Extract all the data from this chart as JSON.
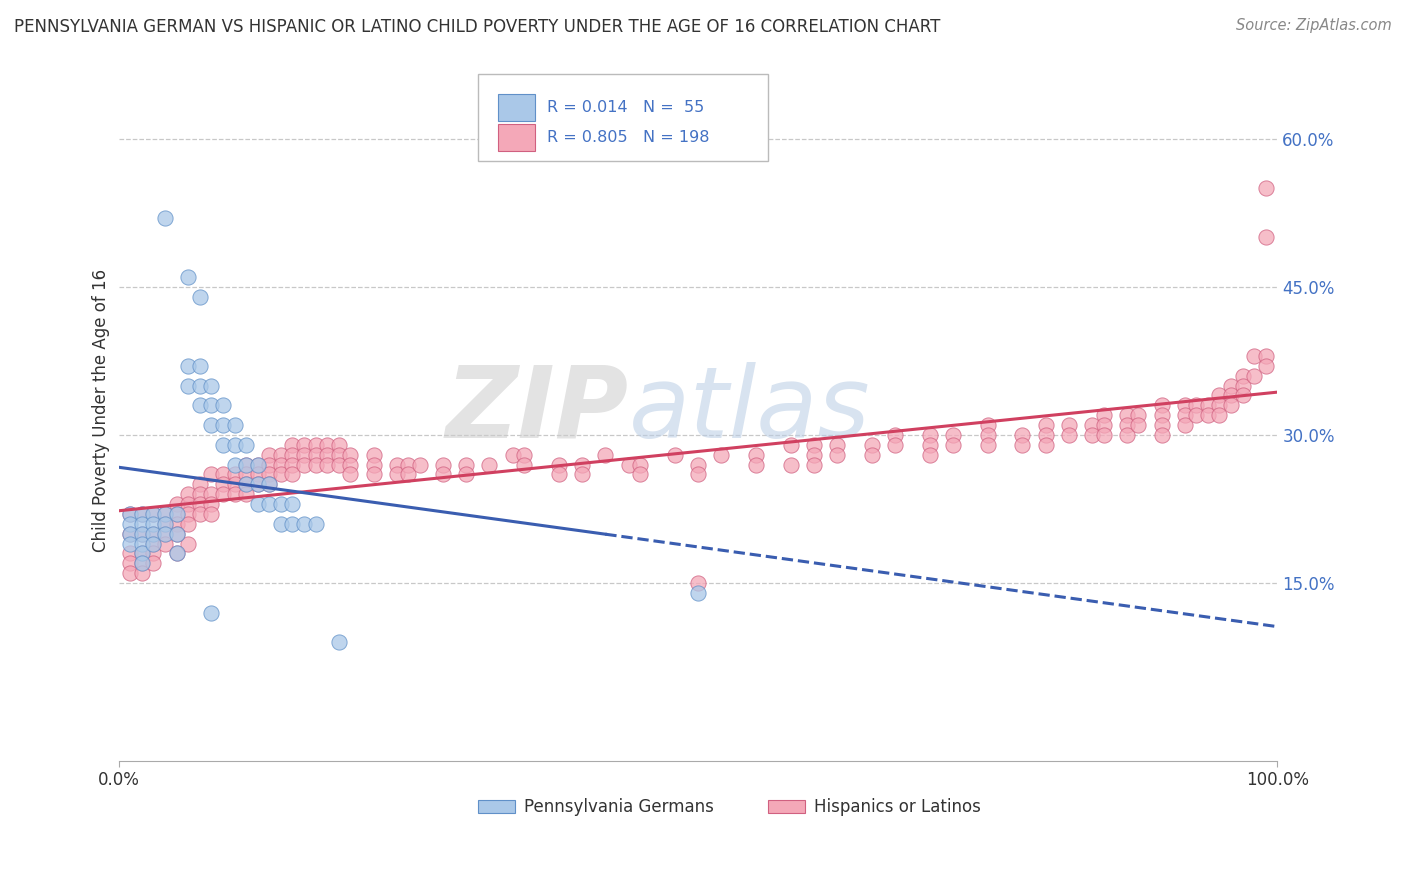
{
  "title": "PENNSYLVANIA GERMAN VS HISPANIC OR LATINO CHILD POVERTY UNDER THE AGE OF 16 CORRELATION CHART",
  "source": "Source: ZipAtlas.com",
  "ylabel": "Child Poverty Under the Age of 16",
  "right_yticks": [
    "15.0%",
    "30.0%",
    "45.0%",
    "60.0%"
  ],
  "right_ytick_vals": [
    0.15,
    0.3,
    0.45,
    0.6
  ],
  "r_blue": 0.014,
  "n_blue": 55,
  "r_pink": 0.805,
  "n_pink": 198,
  "blue_color": "#aac8e8",
  "blue_edge_color": "#6090c8",
  "pink_color": "#f4a8b8",
  "pink_edge_color": "#d06080",
  "blue_line_color": "#3a5db0",
  "pink_line_color": "#d04060",
  "text_color": "#4472c4",
  "dark_text": "#333333",
  "watermark_color": "#d0d8e8",
  "xlim": [
    0.0,
    1.0
  ],
  "ylim": [
    -0.03,
    0.68
  ],
  "background_color": "#ffffff",
  "grid_color": "#c8c8c8",
  "blue_scatter": [
    [
      0.01,
      0.22
    ],
    [
      0.01,
      0.21
    ],
    [
      0.01,
      0.2
    ],
    [
      0.01,
      0.19
    ],
    [
      0.02,
      0.22
    ],
    [
      0.02,
      0.21
    ],
    [
      0.02,
      0.2
    ],
    [
      0.02,
      0.19
    ],
    [
      0.02,
      0.18
    ],
    [
      0.02,
      0.17
    ],
    [
      0.03,
      0.22
    ],
    [
      0.03,
      0.21
    ],
    [
      0.03,
      0.2
    ],
    [
      0.03,
      0.19
    ],
    [
      0.04,
      0.22
    ],
    [
      0.04,
      0.21
    ],
    [
      0.04,
      0.2
    ],
    [
      0.05,
      0.22
    ],
    [
      0.05,
      0.2
    ],
    [
      0.05,
      0.18
    ],
    [
      0.06,
      0.37
    ],
    [
      0.06,
      0.35
    ],
    [
      0.07,
      0.37
    ],
    [
      0.07,
      0.35
    ],
    [
      0.07,
      0.33
    ],
    [
      0.08,
      0.35
    ],
    [
      0.08,
      0.33
    ],
    [
      0.08,
      0.31
    ],
    [
      0.09,
      0.33
    ],
    [
      0.09,
      0.31
    ],
    [
      0.09,
      0.29
    ],
    [
      0.1,
      0.31
    ],
    [
      0.1,
      0.29
    ],
    [
      0.1,
      0.27
    ],
    [
      0.11,
      0.29
    ],
    [
      0.11,
      0.27
    ],
    [
      0.11,
      0.25
    ],
    [
      0.12,
      0.27
    ],
    [
      0.12,
      0.25
    ],
    [
      0.12,
      0.23
    ],
    [
      0.13,
      0.25
    ],
    [
      0.13,
      0.23
    ],
    [
      0.14,
      0.23
    ],
    [
      0.14,
      0.21
    ],
    [
      0.15,
      0.23
    ],
    [
      0.15,
      0.21
    ],
    [
      0.16,
      0.21
    ],
    [
      0.17,
      0.21
    ],
    [
      0.04,
      0.52
    ],
    [
      0.06,
      0.46
    ],
    [
      0.07,
      0.44
    ],
    [
      0.08,
      0.12
    ],
    [
      0.19,
      0.09
    ],
    [
      0.5,
      0.14
    ]
  ],
  "pink_scatter": [
    [
      0.01,
      0.22
    ],
    [
      0.01,
      0.2
    ],
    [
      0.01,
      0.18
    ],
    [
      0.01,
      0.17
    ],
    [
      0.01,
      0.16
    ],
    [
      0.02,
      0.22
    ],
    [
      0.02,
      0.2
    ],
    [
      0.02,
      0.18
    ],
    [
      0.02,
      0.17
    ],
    [
      0.02,
      0.16
    ],
    [
      0.03,
      0.22
    ],
    [
      0.03,
      0.2
    ],
    [
      0.03,
      0.19
    ],
    [
      0.03,
      0.18
    ],
    [
      0.03,
      0.17
    ],
    [
      0.04,
      0.22
    ],
    [
      0.04,
      0.21
    ],
    [
      0.04,
      0.2
    ],
    [
      0.04,
      0.19
    ],
    [
      0.05,
      0.23
    ],
    [
      0.05,
      0.22
    ],
    [
      0.05,
      0.21
    ],
    [
      0.05,
      0.2
    ],
    [
      0.05,
      0.18
    ],
    [
      0.06,
      0.24
    ],
    [
      0.06,
      0.23
    ],
    [
      0.06,
      0.22
    ],
    [
      0.06,
      0.21
    ],
    [
      0.06,
      0.19
    ],
    [
      0.07,
      0.25
    ],
    [
      0.07,
      0.24
    ],
    [
      0.07,
      0.23
    ],
    [
      0.07,
      0.22
    ],
    [
      0.08,
      0.26
    ],
    [
      0.08,
      0.24
    ],
    [
      0.08,
      0.23
    ],
    [
      0.08,
      0.22
    ],
    [
      0.09,
      0.26
    ],
    [
      0.09,
      0.25
    ],
    [
      0.09,
      0.24
    ],
    [
      0.1,
      0.26
    ],
    [
      0.1,
      0.25
    ],
    [
      0.1,
      0.24
    ],
    [
      0.11,
      0.27
    ],
    [
      0.11,
      0.26
    ],
    [
      0.11,
      0.25
    ],
    [
      0.11,
      0.24
    ],
    [
      0.12,
      0.27
    ],
    [
      0.12,
      0.26
    ],
    [
      0.12,
      0.25
    ],
    [
      0.13,
      0.28
    ],
    [
      0.13,
      0.27
    ],
    [
      0.13,
      0.26
    ],
    [
      0.13,
      0.25
    ],
    [
      0.14,
      0.28
    ],
    [
      0.14,
      0.27
    ],
    [
      0.14,
      0.26
    ],
    [
      0.15,
      0.29
    ],
    [
      0.15,
      0.28
    ],
    [
      0.15,
      0.27
    ],
    [
      0.15,
      0.26
    ],
    [
      0.16,
      0.29
    ],
    [
      0.16,
      0.28
    ],
    [
      0.16,
      0.27
    ],
    [
      0.17,
      0.29
    ],
    [
      0.17,
      0.28
    ],
    [
      0.17,
      0.27
    ],
    [
      0.18,
      0.29
    ],
    [
      0.18,
      0.28
    ],
    [
      0.18,
      0.27
    ],
    [
      0.19,
      0.29
    ],
    [
      0.19,
      0.28
    ],
    [
      0.19,
      0.27
    ],
    [
      0.2,
      0.28
    ],
    [
      0.2,
      0.27
    ],
    [
      0.2,
      0.26
    ],
    [
      0.22,
      0.28
    ],
    [
      0.22,
      0.27
    ],
    [
      0.22,
      0.26
    ],
    [
      0.24,
      0.27
    ],
    [
      0.24,
      0.26
    ],
    [
      0.25,
      0.27
    ],
    [
      0.25,
      0.26
    ],
    [
      0.26,
      0.27
    ],
    [
      0.28,
      0.27
    ],
    [
      0.28,
      0.26
    ],
    [
      0.3,
      0.27
    ],
    [
      0.3,
      0.26
    ],
    [
      0.32,
      0.27
    ],
    [
      0.34,
      0.28
    ],
    [
      0.35,
      0.28
    ],
    [
      0.35,
      0.27
    ],
    [
      0.38,
      0.27
    ],
    [
      0.38,
      0.26
    ],
    [
      0.4,
      0.27
    ],
    [
      0.4,
      0.26
    ],
    [
      0.42,
      0.28
    ],
    [
      0.44,
      0.27
    ],
    [
      0.45,
      0.27
    ],
    [
      0.45,
      0.26
    ],
    [
      0.48,
      0.28
    ],
    [
      0.5,
      0.27
    ],
    [
      0.5,
      0.26
    ],
    [
      0.52,
      0.28
    ],
    [
      0.55,
      0.28
    ],
    [
      0.55,
      0.27
    ],
    [
      0.58,
      0.29
    ],
    [
      0.58,
      0.27
    ],
    [
      0.6,
      0.29
    ],
    [
      0.6,
      0.28
    ],
    [
      0.6,
      0.27
    ],
    [
      0.62,
      0.29
    ],
    [
      0.62,
      0.28
    ],
    [
      0.65,
      0.29
    ],
    [
      0.65,
      0.28
    ],
    [
      0.67,
      0.3
    ],
    [
      0.67,
      0.29
    ],
    [
      0.7,
      0.3
    ],
    [
      0.7,
      0.29
    ],
    [
      0.7,
      0.28
    ],
    [
      0.72,
      0.3
    ],
    [
      0.72,
      0.29
    ],
    [
      0.75,
      0.31
    ],
    [
      0.75,
      0.3
    ],
    [
      0.75,
      0.29
    ],
    [
      0.78,
      0.3
    ],
    [
      0.78,
      0.29
    ],
    [
      0.8,
      0.31
    ],
    [
      0.8,
      0.3
    ],
    [
      0.8,
      0.29
    ],
    [
      0.82,
      0.31
    ],
    [
      0.82,
      0.3
    ],
    [
      0.84,
      0.31
    ],
    [
      0.84,
      0.3
    ],
    [
      0.85,
      0.32
    ],
    [
      0.85,
      0.31
    ],
    [
      0.85,
      0.3
    ],
    [
      0.87,
      0.32
    ],
    [
      0.87,
      0.31
    ],
    [
      0.87,
      0.3
    ],
    [
      0.88,
      0.32
    ],
    [
      0.88,
      0.31
    ],
    [
      0.9,
      0.33
    ],
    [
      0.9,
      0.32
    ],
    [
      0.9,
      0.31
    ],
    [
      0.9,
      0.3
    ],
    [
      0.92,
      0.33
    ],
    [
      0.92,
      0.32
    ],
    [
      0.92,
      0.31
    ],
    [
      0.93,
      0.33
    ],
    [
      0.93,
      0.32
    ],
    [
      0.94,
      0.33
    ],
    [
      0.94,
      0.32
    ],
    [
      0.95,
      0.34
    ],
    [
      0.95,
      0.33
    ],
    [
      0.95,
      0.32
    ],
    [
      0.96,
      0.35
    ],
    [
      0.96,
      0.34
    ],
    [
      0.96,
      0.33
    ],
    [
      0.97,
      0.36
    ],
    [
      0.97,
      0.35
    ],
    [
      0.97,
      0.34
    ],
    [
      0.98,
      0.38
    ],
    [
      0.98,
      0.36
    ],
    [
      0.99,
      0.38
    ],
    [
      0.99,
      0.37
    ],
    [
      0.99,
      0.5
    ],
    [
      0.99,
      0.55
    ],
    [
      0.5,
      0.15
    ]
  ]
}
